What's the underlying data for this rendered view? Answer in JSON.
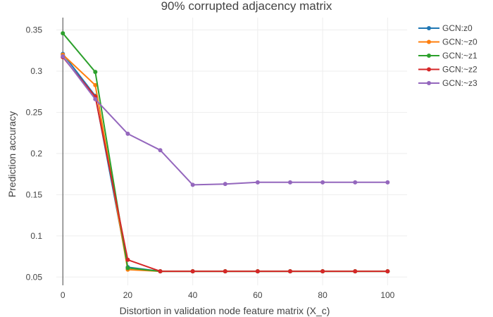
{
  "chart_data": {
    "type": "line",
    "title": "90% corrupted adjacency matrix",
    "xlabel": "Distortion in validation node feature matrix (X_c)",
    "ylabel": "Prediction accuracy",
    "xlim": [
      -2,
      106
    ],
    "ylim": [
      0.04,
      0.365
    ],
    "x": [
      0,
      10,
      20,
      30,
      40,
      50,
      60,
      70,
      80,
      90,
      100
    ],
    "x_ticks": [
      0,
      20,
      40,
      60,
      80,
      100
    ],
    "x_tick_labels": [
      "0",
      "20",
      "40",
      "60",
      "80",
      "100"
    ],
    "y_ticks": [
      0.05,
      0.1,
      0.15,
      0.2,
      0.25,
      0.3,
      0.35
    ],
    "y_tick_labels": [
      "0.05",
      "0.1",
      "0.15",
      "0.2",
      "0.25",
      "0.3",
      "0.35"
    ],
    "grid": true,
    "legend_position": "top-right",
    "series": [
      {
        "name": "GCN:z0",
        "color": "#1f77b4",
        "values": [
          0.321,
          0.27,
          0.062,
          0.057,
          0.057,
          0.057,
          0.057,
          0.057,
          0.057,
          0.057,
          0.057
        ]
      },
      {
        "name": "GCN:~z0",
        "color": "#ff7f0e",
        "values": [
          0.32,
          0.283,
          0.059,
          0.057,
          0.057,
          0.057,
          0.057,
          0.057,
          0.057,
          0.057,
          0.057
        ]
      },
      {
        "name": "GCN:~z1",
        "color": "#2ca02c",
        "values": [
          0.346,
          0.299,
          0.061,
          0.057,
          0.057,
          0.057,
          0.057,
          0.057,
          0.057,
          0.057,
          0.057
        ]
      },
      {
        "name": "GCN:~z2",
        "color": "#d62728",
        "values": [
          0.317,
          0.269,
          0.071,
          0.057,
          0.057,
          0.057,
          0.057,
          0.057,
          0.057,
          0.057,
          0.057
        ]
      },
      {
        "name": "GCN:~z3",
        "color": "#9467bd",
        "values": [
          0.318,
          0.266,
          0.224,
          0.204,
          0.162,
          0.163,
          0.165,
          0.165,
          0.165,
          0.165,
          0.165
        ]
      }
    ]
  }
}
